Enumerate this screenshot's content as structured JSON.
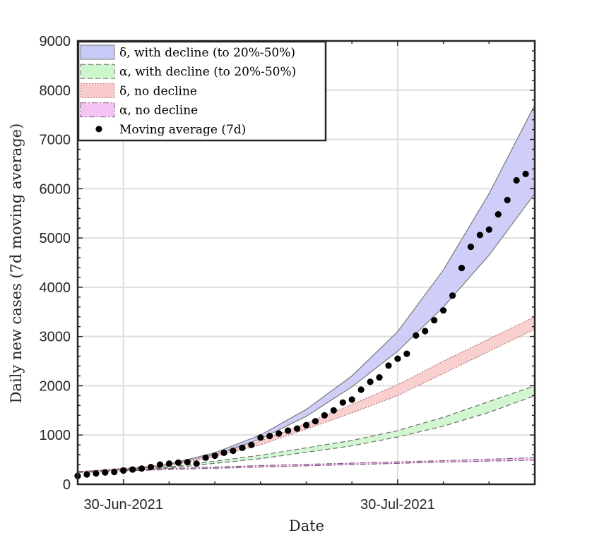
{
  "chart_data": {
    "type": "area",
    "xlabel": "Date",
    "ylabel": "Daily new cases (7d moving average)",
    "x_start": "2021-06-25",
    "x_end": "2021-08-14",
    "xlim": [
      "2021-06-25",
      "2021-08-14"
    ],
    "ylim": [
      0,
      9000
    ],
    "yticks": [
      0,
      1000,
      2000,
      3000,
      4000,
      5000,
      6000,
      7000,
      8000,
      9000
    ],
    "ytick_labels": [
      "0",
      "1000",
      "2000",
      "3000",
      "4000",
      "5000",
      "6000",
      "7000",
      "8000",
      "9000"
    ],
    "xticks": [
      {
        "date": "2021-06-30",
        "label": "30-Jun-2021"
      },
      {
        "date": "2021-07-30",
        "label": "30-Jul-2021"
      }
    ],
    "grid": true,
    "legend_position": "top-left",
    "bands": [
      {
        "name": "δ, with decline (to 20%-50%)",
        "fill": "#c9c9f7",
        "stroke": "#7a7a7a",
        "dash": "solid",
        "lower": [
          [
            "2021-06-25",
            250
          ],
          [
            "2021-07-01",
            300
          ],
          [
            "2021-07-05",
            390
          ],
          [
            "2021-07-10",
            600
          ],
          [
            "2021-07-15",
            920
          ],
          [
            "2021-07-20",
            1380
          ],
          [
            "2021-07-25",
            1980
          ],
          [
            "2021-07-30",
            2700
          ],
          [
            "2021-08-04",
            3600
          ],
          [
            "2021-08-09",
            4650
          ],
          [
            "2021-08-14",
            5900
          ]
        ],
        "upper": [
          [
            "2021-06-25",
            250
          ],
          [
            "2021-07-01",
            310
          ],
          [
            "2021-07-05",
            410
          ],
          [
            "2021-07-10",
            640
          ],
          [
            "2021-07-15",
            1000
          ],
          [
            "2021-07-20",
            1520
          ],
          [
            "2021-07-25",
            2200
          ],
          [
            "2021-07-30",
            3100
          ],
          [
            "2021-08-04",
            4350
          ],
          [
            "2021-08-09",
            5900
          ],
          [
            "2021-08-14",
            7700
          ]
        ]
      },
      {
        "name": "α, with decline (to 20%-50%)",
        "fill": "#ccf5cc",
        "stroke": "#6e6e6e",
        "dash": "dashed",
        "lower": [
          [
            "2021-06-25",
            250
          ],
          [
            "2021-07-05",
            330
          ],
          [
            "2021-07-15",
            520
          ],
          [
            "2021-07-25",
            780
          ],
          [
            "2021-07-30",
            960
          ],
          [
            "2021-08-04",
            1180
          ],
          [
            "2021-08-09",
            1460
          ],
          [
            "2021-08-14",
            1800
          ]
        ],
        "upper": [
          [
            "2021-06-25",
            255
          ],
          [
            "2021-07-05",
            350
          ],
          [
            "2021-07-15",
            590
          ],
          [
            "2021-07-25",
            890
          ],
          [
            "2021-07-30",
            1090
          ],
          [
            "2021-08-04",
            1360
          ],
          [
            "2021-08-09",
            1680
          ],
          [
            "2021-08-14",
            2000
          ]
        ]
      },
      {
        "name": "δ, no decline",
        "fill": "#f9caca",
        "stroke": "#b07070",
        "dash": "dotted",
        "lower": [
          [
            "2021-06-25",
            250
          ],
          [
            "2021-07-05",
            380
          ],
          [
            "2021-07-10",
            560
          ],
          [
            "2021-07-15",
            800
          ],
          [
            "2021-07-20",
            1120
          ],
          [
            "2021-07-25",
            1450
          ],
          [
            "2021-07-30",
            1800
          ],
          [
            "2021-08-04",
            2250
          ],
          [
            "2021-08-09",
            2700
          ],
          [
            "2021-08-14",
            3150
          ]
        ],
        "upper": [
          [
            "2021-06-25",
            255
          ],
          [
            "2021-07-05",
            400
          ],
          [
            "2021-07-10",
            600
          ],
          [
            "2021-07-15",
            880
          ],
          [
            "2021-07-20",
            1240
          ],
          [
            "2021-07-25",
            1620
          ],
          [
            "2021-07-30",
            2020
          ],
          [
            "2021-08-04",
            2500
          ],
          [
            "2021-08-09",
            2950
          ],
          [
            "2021-08-14",
            3400
          ]
        ]
      },
      {
        "name": "α, no decline",
        "fill": "#f5c4f5",
        "stroke": "#7a5a7a",
        "dash": "dashdot",
        "lower": [
          [
            "2021-06-25",
            240
          ],
          [
            "2021-07-05",
            300
          ],
          [
            "2021-07-15",
            350
          ],
          [
            "2021-07-25",
            400
          ],
          [
            "2021-07-30",
            425
          ],
          [
            "2021-08-04",
            450
          ],
          [
            "2021-08-14",
            490
          ]
        ],
        "upper": [
          [
            "2021-06-25",
            260
          ],
          [
            "2021-07-05",
            320
          ],
          [
            "2021-07-15",
            380
          ],
          [
            "2021-07-25",
            430
          ],
          [
            "2021-07-30",
            455
          ],
          [
            "2021-08-04",
            480
          ],
          [
            "2021-08-14",
            540
          ]
        ]
      }
    ],
    "points": {
      "name": "Moving average (7d)",
      "color": "#000000",
      "data": [
        [
          "2021-06-25",
          170
        ],
        [
          "2021-06-26",
          200
        ],
        [
          "2021-06-27",
          220
        ],
        [
          "2021-06-28",
          240
        ],
        [
          "2021-06-29",
          250
        ],
        [
          "2021-06-30",
          280
        ],
        [
          "2021-07-01",
          300
        ],
        [
          "2021-07-02",
          320
        ],
        [
          "2021-07-03",
          350
        ],
        [
          "2021-07-04",
          400
        ],
        [
          "2021-07-05",
          420
        ],
        [
          "2021-07-06",
          440
        ],
        [
          "2021-07-07",
          450
        ],
        [
          "2021-07-08",
          420
        ],
        [
          "2021-07-09",
          540
        ],
        [
          "2021-07-10",
          580
        ],
        [
          "2021-07-11",
          640
        ],
        [
          "2021-07-12",
          680
        ],
        [
          "2021-07-13",
          740
        ],
        [
          "2021-07-14",
          800
        ],
        [
          "2021-07-15",
          950
        ],
        [
          "2021-07-16",
          980
        ],
        [
          "2021-07-17",
          1030
        ],
        [
          "2021-07-18",
          1090
        ],
        [
          "2021-07-19",
          1130
        ],
        [
          "2021-07-20",
          1200
        ],
        [
          "2021-07-21",
          1280
        ],
        [
          "2021-07-22",
          1400
        ],
        [
          "2021-07-23",
          1500
        ],
        [
          "2021-07-24",
          1660
        ],
        [
          "2021-07-25",
          1720
        ],
        [
          "2021-07-26",
          1920
        ],
        [
          "2021-07-27",
          2080
        ],
        [
          "2021-07-28",
          2170
        ],
        [
          "2021-07-29",
          2410
        ],
        [
          "2021-07-30",
          2550
        ],
        [
          "2021-07-31",
          2650
        ],
        [
          "2021-08-01",
          3020
        ],
        [
          "2021-08-02",
          3110
        ],
        [
          "2021-08-03",
          3330
        ],
        [
          "2021-08-04",
          3530
        ],
        [
          "2021-08-05",
          3830
        ],
        [
          "2021-08-06",
          4390
        ],
        [
          "2021-08-07",
          4820
        ],
        [
          "2021-08-08",
          5060
        ],
        [
          "2021-08-09",
          5170
        ],
        [
          "2021-08-10",
          5480
        ],
        [
          "2021-08-11",
          5770
        ],
        [
          "2021-08-12",
          6170
        ],
        [
          "2021-08-13",
          6300
        ]
      ]
    }
  }
}
